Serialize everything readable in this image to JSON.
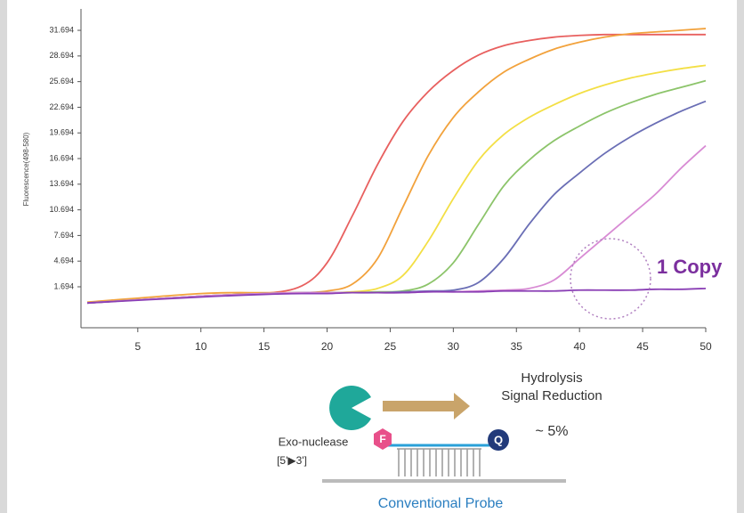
{
  "chart_data": {
    "type": "line",
    "y_label": "Fluorescence(498-580)",
    "x": [
      1,
      10,
      15,
      18,
      20,
      22,
      24,
      26,
      28,
      30,
      32,
      34,
      36,
      38,
      40,
      42,
      44,
      46,
      48,
      50
    ],
    "series": [
      {
        "color": "#e8605f",
        "values": [
          -0.2,
          0.6,
          0.9,
          1.8,
          4.5,
          10,
          16,
          21,
          24.5,
          27,
          28.8,
          29.9,
          30.5,
          30.9,
          31.1,
          31.2,
          31.2,
          31.2,
          31.2,
          31.2
        ]
      },
      {
        "color": "#f2a23c",
        "values": [
          -0.1,
          0.9,
          1.0,
          1.0,
          1.2,
          2.0,
          5,
          11,
          17,
          21.5,
          24.5,
          26.8,
          28.3,
          29.5,
          30.3,
          30.9,
          31.3,
          31.5,
          31.7,
          31.9
        ]
      },
      {
        "color": "#f3df45",
        "values": [
          -0.2,
          0.6,
          0.9,
          1.0,
          1.0,
          1.1,
          1.5,
          3,
          7,
          12,
          16.5,
          19.5,
          21.5,
          23,
          24.3,
          25.3,
          26.1,
          26.7,
          27.2,
          27.6
        ]
      },
      {
        "color": "#8cc46a",
        "values": [
          -0.2,
          0.6,
          0.9,
          1.0,
          1.0,
          1.0,
          1.1,
          1.2,
          2,
          4.5,
          9,
          13.5,
          16.5,
          18.8,
          20.5,
          22,
          23.2,
          24.2,
          25,
          25.8
        ]
      },
      {
        "color": "#6a6eb5",
        "values": [
          -0.2,
          0.6,
          0.9,
          1.0,
          1.0,
          1.0,
          1.0,
          1.1,
          1.2,
          1.3,
          2.2,
          5,
          9,
          12.5,
          15,
          17.3,
          19.2,
          20.8,
          22.2,
          23.4
        ]
      },
      {
        "color": "#d88bd4",
        "values": [
          -0.2,
          0.6,
          0.9,
          1.0,
          1.0,
          1.0,
          1.0,
          1.0,
          1.1,
          1.1,
          1.2,
          1.3,
          1.5,
          2.5,
          5,
          7.5,
          10,
          12.5,
          15.5,
          18.2
        ]
      },
      {
        "color": "#8a3fb5",
        "values": [
          -0.2,
          0.5,
          0.8,
          0.9,
          0.9,
          1.0,
          1.0,
          1.0,
          1.1,
          1.1,
          1.1,
          1.2,
          1.2,
          1.2,
          1.3,
          1.3,
          1.3,
          1.4,
          1.4,
          1.5
        ]
      }
    ],
    "xlim": [
      0.5,
      50
    ],
    "ylim": [
      -3.1,
      34.2
    ],
    "xticks": [
      5,
      10,
      15,
      20,
      25,
      30,
      35,
      40,
      45,
      50
    ],
    "yticks": [
      1.694,
      4.694,
      7.694,
      10.694,
      13.694,
      16.694,
      19.694,
      22.694,
      25.694,
      28.694,
      31.694
    ],
    "annotation": "1 Copy"
  },
  "diagram": {
    "hydrolysis": "Hydrolysis",
    "signal_reduction": "Signal Reduction",
    "reduction_value": "~ 5%",
    "enzyme": "Exo-nuclease",
    "direction": "[5'▶3']",
    "fluorophore": "F",
    "quencher": "Q",
    "probe_label": "Conventional Probe"
  }
}
